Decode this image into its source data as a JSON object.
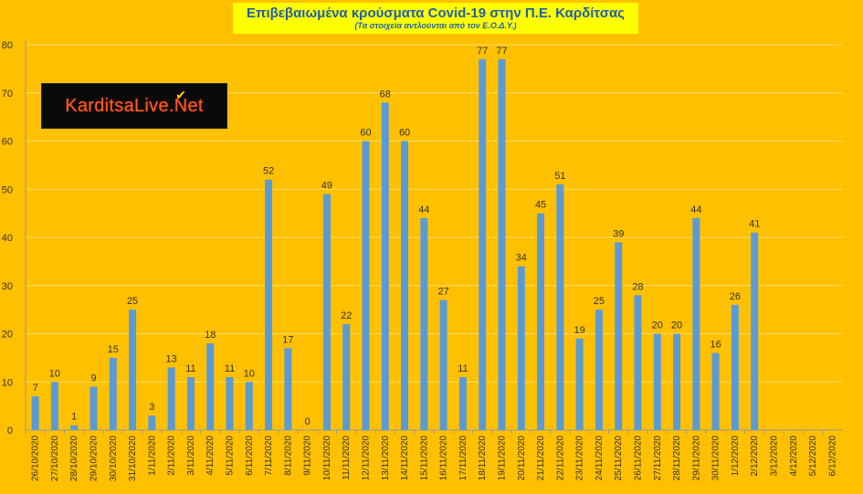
{
  "title": "Επιβεβαιωμένα κρούσματα Covid-19 στην Π.Ε. Καρδίτσας",
  "subtitle": "(Τα στοιχεία αντλούνται από τον Ε.Ο.Δ.Υ.)",
  "logo": {
    "text": "KarditsaLive.Net",
    "check_icon": "check-icon"
  },
  "colors": {
    "background": "#ffc000",
    "bar": "#5b9bd5",
    "grid": "#ffe066",
    "title_box": "#ffff00",
    "title_text": "#1f5fa8"
  },
  "chart_data": {
    "type": "bar",
    "title": "Επιβεβαιωμένα κρούσματα Covid-19 στην Π.Ε. Καρδίτσας",
    "subtitle": "(Τα στοιχεία αντλούνται από τον Ε.Ο.Δ.Υ.)",
    "xlabel": "",
    "ylabel": "",
    "ylim": [
      0,
      80
    ],
    "yticks": [
      0,
      10,
      20,
      30,
      40,
      50,
      60,
      70,
      80
    ],
    "grid": true,
    "categories": [
      "26/10/2020",
      "27/10/2020",
      "28/10/2020",
      "29/10/2020",
      "30/10/2020",
      "31/10/2020",
      "1/11/2020",
      "2/11/2020",
      "3/11/2020",
      "4/11/2020",
      "5/11/2020",
      "6/11/2020",
      "7/11/2020",
      "8/11/2020",
      "9/11/2020",
      "10/11/2020",
      "11/11/2020",
      "12/11/2020",
      "13/11/2020",
      "14/11/2020",
      "15/11/2020",
      "16/11/2020",
      "17/11/2020",
      "18/11/2020",
      "19/11/2020",
      "20/11/2020",
      "21/11/2020",
      "22/11/2020",
      "23/11/2020",
      "24/11/2020",
      "25/11/2020",
      "26/11/2020",
      "27/11/2020",
      "28/11/2020",
      "29/11/2020",
      "30/11/2020",
      "1/12/2020",
      "2/12/2020",
      "3/12/2020",
      "4/12/2020",
      "5/12/2020",
      "6/12/2020"
    ],
    "values": [
      7,
      10,
      1,
      9,
      15,
      25,
      3,
      13,
      11,
      18,
      11,
      10,
      52,
      17,
      0,
      49,
      22,
      60,
      68,
      60,
      44,
      27,
      11,
      77,
      77,
      34,
      45,
      51,
      19,
      25,
      39,
      28,
      20,
      20,
      44,
      16,
      26,
      41,
      null,
      null,
      null,
      null
    ]
  }
}
